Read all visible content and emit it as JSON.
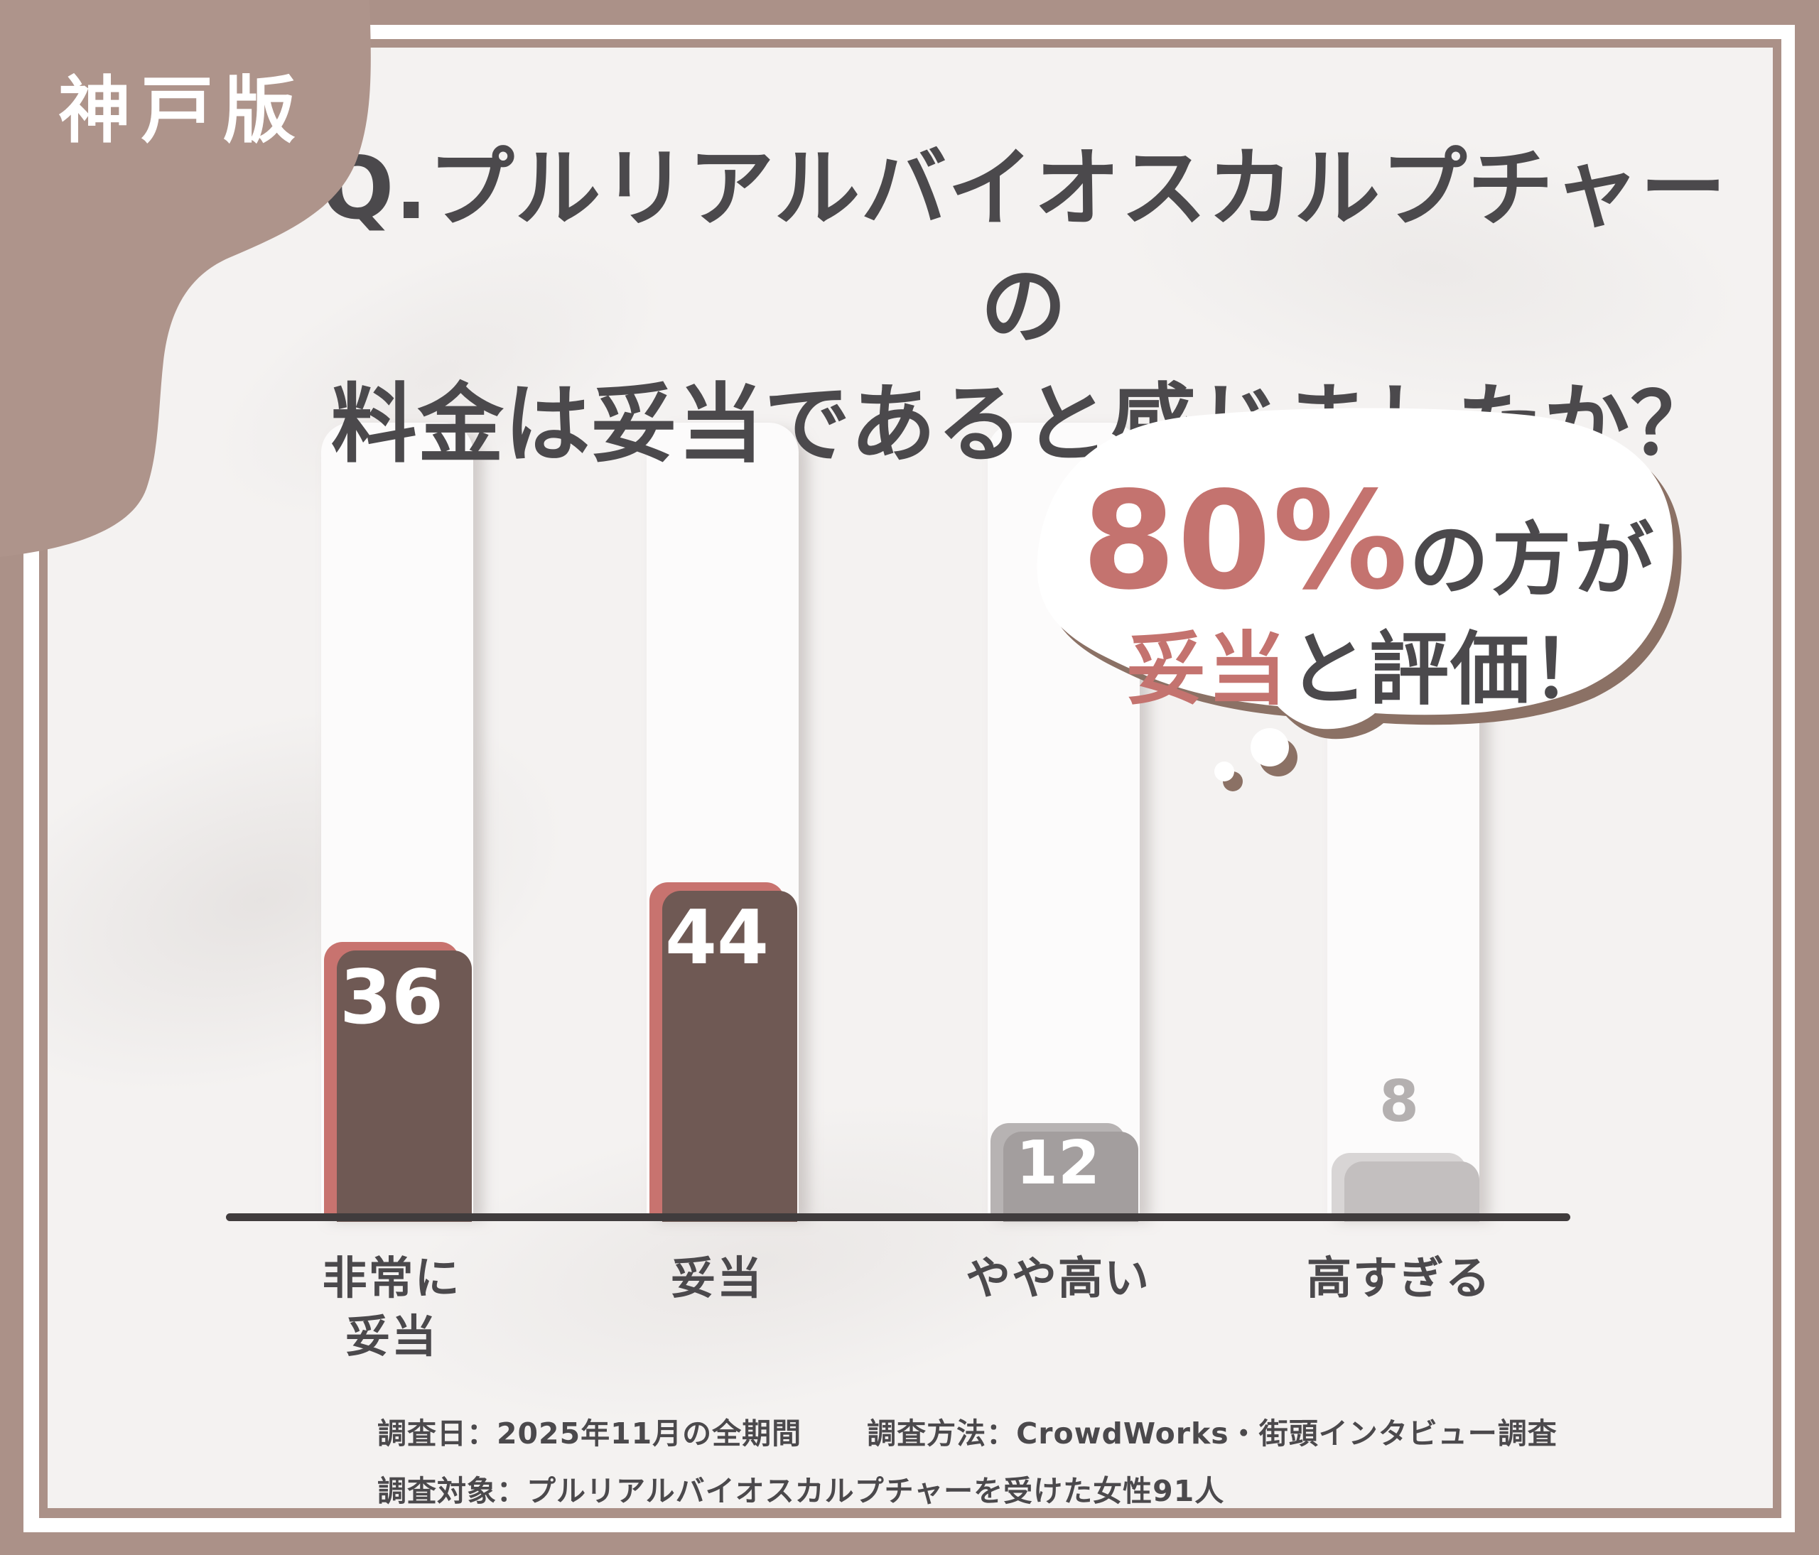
{
  "page": {
    "badge": "神戸版"
  },
  "title": {
    "line1": "Q.プルリアルバイオスカルプチャーの",
    "line2": "料金は妥当であると感じましたか？"
  },
  "bubble": {
    "percent": "80%",
    "percent_suffix": "の方が",
    "highlight": "妥当",
    "highlight_suffix": "と評価！"
  },
  "chart_data": {
    "type": "bar",
    "title": "Q.プルリアルバイオスカルプチャーの料金は妥当であると感じましたか？",
    "categories": [
      "非常に妥当",
      "妥当",
      "やや高い",
      "高すぎる"
    ],
    "values": [
      36,
      44,
      12,
      8
    ],
    "value_labels": [
      "36",
      "44",
      "12",
      "8"
    ],
    "category_display": [
      "非常に\n妥当",
      "妥当",
      "やや高い",
      "高すぎる"
    ],
    "ylim": [
      0,
      100
    ],
    "xlabel": "",
    "ylabel": "",
    "grid": false,
    "legend": false,
    "bar_colors": [
      "#c8736f",
      "#c8736f",
      "#b7b3b3",
      "#d8d5d5"
    ],
    "bar_shadow_colors": [
      "#6f5954",
      "#6f5954",
      "#a39e9e",
      "#c3bfbf"
    ],
    "value_label_colors": [
      "#ffffff",
      "#ffffff",
      "#ffffff",
      "#b4b0b0"
    ],
    "value_label_inside": [
      true,
      true,
      true,
      false
    ],
    "annotation": "80%の方が妥当と評価！"
  },
  "footer": {
    "line1_left": "調査日：2025年11月の全期間",
    "line1_right": "調査方法：CrowdWorks・街頭インタビュー調査",
    "line2": "調査対象：プルリアルバイオスカルプチャーを受けた女性91人"
  },
  "colors": {
    "frame_brown": "#ab9188",
    "blob_brown": "#ae948b",
    "card_bg": "#f4f2f1",
    "column_white": "#fcfbfb",
    "text_dark": "#4b494c",
    "accent_red": "#c4736f",
    "axis": "#403c3d",
    "bubble_shadow": "#8b7165"
  }
}
